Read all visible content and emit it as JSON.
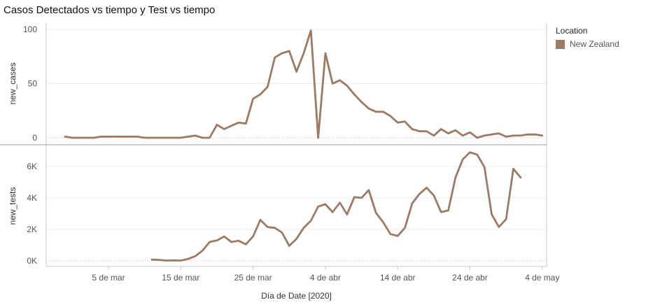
{
  "title": "Casos Detectados vs tiempo y Test vs tiempo",
  "legend": {
    "title": "Location",
    "item": "New Zealand",
    "color": "#9c7a64"
  },
  "chart_data": [
    {
      "type": "line",
      "ylabel": "new_cases",
      "ylim": [
        0,
        100
      ],
      "yticks": [
        0,
        50,
        100
      ],
      "ytick_labels": [
        "0",
        "50",
        "100"
      ],
      "xlabel": "Día de Date [2020]",
      "xticks": [
        "2020-03-05",
        "2020-03-15",
        "2020-03-25",
        "2020-04-04",
        "2020-04-14",
        "2020-04-24",
        "2020-05-04"
      ],
      "xtick_labels": [
        "5 de mar",
        "15 de mar",
        "25 de mar",
        "4 de abr",
        "14 de abr",
        "24 de abr",
        "4 de may"
      ],
      "grid": true,
      "series": [
        {
          "name": "New Zealand",
          "color": "#9c7a64",
          "points": [
            [
              "2020-02-28",
              1
            ],
            [
              "2020-02-29",
              0
            ],
            [
              "2020-03-01",
              0
            ],
            [
              "2020-03-02",
              0
            ],
            [
              "2020-03-03",
              0
            ],
            [
              "2020-03-04",
              1
            ],
            [
              "2020-03-05",
              1
            ],
            [
              "2020-03-06",
              1
            ],
            [
              "2020-03-07",
              1
            ],
            [
              "2020-03-08",
              1
            ],
            [
              "2020-03-09",
              1
            ],
            [
              "2020-03-10",
              0
            ],
            [
              "2020-03-11",
              0
            ],
            [
              "2020-03-12",
              0
            ],
            [
              "2020-03-13",
              0
            ],
            [
              "2020-03-14",
              0
            ],
            [
              "2020-03-15",
              0
            ],
            [
              "2020-03-16",
              1
            ],
            [
              "2020-03-17",
              2
            ],
            [
              "2020-03-18",
              0
            ],
            [
              "2020-03-19",
              0
            ],
            [
              "2020-03-20",
              12
            ],
            [
              "2020-03-21",
              8
            ],
            [
              "2020-03-22",
              11
            ],
            [
              "2020-03-23",
              14
            ],
            [
              "2020-03-24",
              13
            ],
            [
              "2020-03-25",
              36
            ],
            [
              "2020-03-26",
              40
            ],
            [
              "2020-03-27",
              47
            ],
            [
              "2020-03-28",
              74
            ],
            [
              "2020-03-29",
              78
            ],
            [
              "2020-03-30",
              80
            ],
            [
              "2020-03-31",
              61
            ],
            [
              "2020-04-01",
              78
            ],
            [
              "2020-04-02",
              99
            ],
            [
              "2020-04-03",
              0
            ],
            [
              "2020-04-04",
              78
            ],
            [
              "2020-04-05",
              50
            ],
            [
              "2020-04-06",
              53
            ],
            [
              "2020-04-07",
              48
            ],
            [
              "2020-04-08",
              40
            ],
            [
              "2020-04-09",
              33
            ],
            [
              "2020-04-10",
              27
            ],
            [
              "2020-04-11",
              24
            ],
            [
              "2020-04-12",
              24
            ],
            [
              "2020-04-13",
              20
            ],
            [
              "2020-04-14",
              14
            ],
            [
              "2020-04-15",
              15
            ],
            [
              "2020-04-16",
              8
            ],
            [
              "2020-04-17",
              6
            ],
            [
              "2020-04-18",
              6
            ],
            [
              "2020-04-19",
              2
            ],
            [
              "2020-04-20",
              8
            ],
            [
              "2020-04-21",
              4
            ],
            [
              "2020-04-22",
              7
            ],
            [
              "2020-04-23",
              2
            ],
            [
              "2020-04-24",
              5
            ],
            [
              "2020-04-25",
              0
            ],
            [
              "2020-04-26",
              2
            ],
            [
              "2020-04-27",
              3
            ],
            [
              "2020-04-28",
              4
            ],
            [
              "2020-04-29",
              1
            ],
            [
              "2020-04-30",
              2
            ],
            [
              "2020-05-01",
              2
            ],
            [
              "2020-05-02",
              3
            ],
            [
              "2020-05-03",
              3
            ],
            [
              "2020-05-04",
              2
            ]
          ]
        }
      ]
    },
    {
      "type": "line",
      "ylabel": "new_tests",
      "ylim": [
        0,
        7000
      ],
      "yticks": [
        0,
        2000,
        4000,
        6000
      ],
      "ytick_labels": [
        "0K",
        "2K",
        "4K",
        "6K"
      ],
      "xlabel": "Día de Date [2020]",
      "grid": true,
      "series": [
        {
          "name": "New Zealand",
          "color": "#9c7a64",
          "points": [
            [
              "2020-03-11",
              80
            ],
            [
              "2020-03-12",
              60
            ],
            [
              "2020-03-13",
              20
            ],
            [
              "2020-03-14",
              30
            ],
            [
              "2020-03-15",
              20
            ],
            [
              "2020-03-16",
              120
            ],
            [
              "2020-03-17",
              300
            ],
            [
              "2020-03-18",
              650
            ],
            [
              "2020-03-19",
              1200
            ],
            [
              "2020-03-20",
              1300
            ],
            [
              "2020-03-21",
              1550
            ],
            [
              "2020-03-22",
              1200
            ],
            [
              "2020-03-23",
              1280
            ],
            [
              "2020-03-24",
              1050
            ],
            [
              "2020-03-25",
              1550
            ],
            [
              "2020-03-26",
              2600
            ],
            [
              "2020-03-27",
              2150
            ],
            [
              "2020-03-28",
              2100
            ],
            [
              "2020-03-29",
              1800
            ],
            [
              "2020-03-30",
              950
            ],
            [
              "2020-03-31",
              1400
            ],
            [
              "2020-04-01",
              2100
            ],
            [
              "2020-04-02",
              2550
            ],
            [
              "2020-04-03",
              3450
            ],
            [
              "2020-04-04",
              3600
            ],
            [
              "2020-04-05",
              3100
            ],
            [
              "2020-04-06",
              3700
            ],
            [
              "2020-04-07",
              2950
            ],
            [
              "2020-04-08",
              4050
            ],
            [
              "2020-04-09",
              4000
            ],
            [
              "2020-04-10",
              4500
            ],
            [
              "2020-04-11",
              3050
            ],
            [
              "2020-04-12",
              2450
            ],
            [
              "2020-04-13",
              1700
            ],
            [
              "2020-04-14",
              1580
            ],
            [
              "2020-04-15",
              2100
            ],
            [
              "2020-04-16",
              3650
            ],
            [
              "2020-04-17",
              4250
            ],
            [
              "2020-04-18",
              4650
            ],
            [
              "2020-04-19",
              4150
            ],
            [
              "2020-04-20",
              3100
            ],
            [
              "2020-04-21",
              3200
            ],
            [
              "2020-04-22",
              5300
            ],
            [
              "2020-04-23",
              6450
            ],
            [
              "2020-04-24",
              6900
            ],
            [
              "2020-04-25",
              6750
            ],
            [
              "2020-04-26",
              5950
            ],
            [
              "2020-04-27",
              2950
            ],
            [
              "2020-04-28",
              2150
            ],
            [
              "2020-04-29",
              2650
            ],
            [
              "2020-04-30",
              5850
            ],
            [
              "2020-05-01",
              5300
            ]
          ]
        }
      ]
    }
  ]
}
